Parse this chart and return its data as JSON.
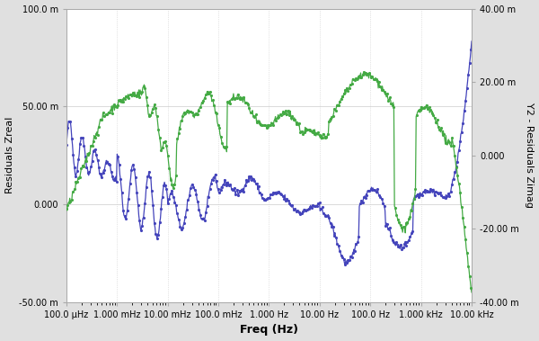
{
  "title": "",
  "xlabel": "Freq (Hz)",
  "ylabel_left": "Residuals Zreal",
  "ylabel_right": "Y2 - Residuals Zimag",
  "xlim_log": [
    0.0001,
    10000.0
  ],
  "ylim_left": [
    -0.05,
    0.1
  ],
  "ylim_right": [
    -0.04,
    0.04
  ],
  "yticks_left": [
    -0.05,
    0.0,
    0.05,
    0.1
  ],
  "ytick_labels_left": [
    "-50.00 m",
    "0.000",
    "50.00 m",
    "100.0 m"
  ],
  "yticks_right": [
    -0.04,
    -0.02,
    0.0,
    0.02,
    0.04
  ],
  "ytick_labels_right": [
    "-40.00 m",
    "-20.00 m",
    "0.000",
    "20.00 m",
    "40.00 m"
  ],
  "xtick_positions": [
    0.0001,
    0.001,
    0.01,
    0.1,
    1.0,
    10.0,
    100.0,
    1000.0,
    10000.0
  ],
  "xtick_labels": [
    "100.0 μHz",
    "1.000 mHz",
    "10.00 mHz",
    "100.0 mHz",
    "1.000 Hz",
    "10.00 Hz",
    "100.0 Hz",
    "1.000 kHz",
    "10.00 kHz"
  ],
  "color_blue": "#4444bb",
  "color_green": "#44aa44",
  "bg_color": "#e0e0e0",
  "plot_bg": "#ffffff",
  "dot_size": 2.5,
  "line_width": 0.9
}
